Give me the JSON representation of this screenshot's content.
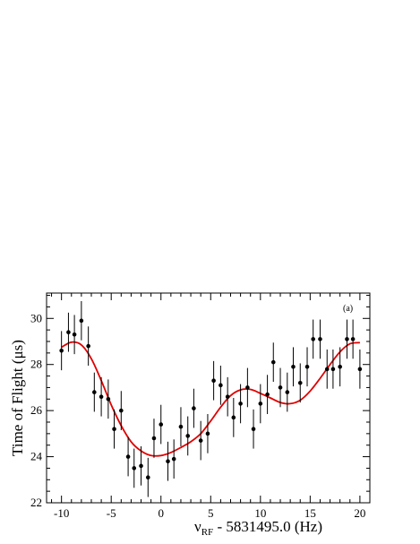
{
  "chart_data": {
    "type": "scatter",
    "panel_label": "(a)",
    "ylabel": "Time of Flight (μs)",
    "xlabel_main": "ν",
    "xlabel_sub": "RF",
    "xlabel_rest": " - 5831495.0 (Hz)",
    "xlim": [
      -11.5,
      21
    ],
    "ylim": [
      22,
      31.1
    ],
    "x_ticks": [
      -10,
      -5,
      0,
      5,
      10,
      15,
      20
    ],
    "y_ticks": [
      22,
      24,
      26,
      28,
      30
    ],
    "grid": false,
    "marker_color": "#000000",
    "fit_color": "#e00000",
    "series": [
      {
        "kind": "measurement",
        "x": [
          -10,
          -9.3,
          -8.7,
          -8,
          -7.3,
          -6.7,
          -6,
          -5.3,
          -4.7,
          -4,
          -3.3,
          -2.7,
          -2,
          -1.3,
          -0.7,
          0,
          0.7,
          1.3,
          2,
          2.7,
          3.3,
          4,
          4.7,
          5.3,
          6,
          6.7,
          7.3,
          8,
          8.7,
          9.3,
          10,
          10.7,
          11.3,
          12,
          12.7,
          13.3,
          14,
          14.7,
          15.3,
          16,
          16.7,
          17.3,
          18,
          18.7,
          19.3,
          20
        ],
        "y": [
          28.6,
          29.4,
          29.3,
          29.9,
          28.8,
          26.8,
          26.6,
          26.5,
          25.2,
          26.0,
          24.0,
          23.5,
          23.6,
          23.1,
          24.8,
          25.4,
          23.8,
          23.9,
          25.3,
          24.9,
          26.1,
          24.7,
          25.0,
          27.3,
          27.1,
          26.6,
          25.7,
          26.3,
          27.0,
          25.2,
          26.3,
          26.7,
          28.1,
          27.0,
          26.8,
          27.9,
          27.2,
          27.9,
          29.1,
          29.1,
          27.8,
          27.8,
          27.9,
          29.1,
          29.1,
          27.8
        ],
        "yerr": 0.85
      },
      {
        "kind": "fit",
        "x": [
          -10,
          -9,
          -8,
          -7,
          -6,
          -5,
          -4,
          -3,
          -2,
          -1,
          0,
          1,
          2,
          3,
          4,
          5,
          6,
          7,
          8,
          9,
          10,
          11,
          12,
          13,
          14,
          15,
          16,
          17,
          18,
          19,
          20
        ],
        "y": [
          28.75,
          28.97,
          28.85,
          28.25,
          27.3,
          26.25,
          25.35,
          24.65,
          24.25,
          24.05,
          24.05,
          24.18,
          24.4,
          24.65,
          25.0,
          25.55,
          26.15,
          26.65,
          26.9,
          26.92,
          26.75,
          26.55,
          26.35,
          26.3,
          26.45,
          26.85,
          27.4,
          28.0,
          28.55,
          28.9,
          28.95
        ]
      }
    ]
  }
}
